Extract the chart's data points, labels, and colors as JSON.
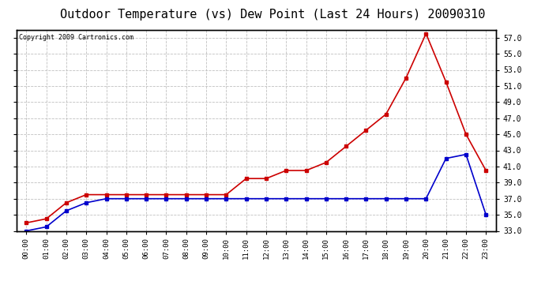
{
  "title": "Outdoor Temperature (vs) Dew Point (Last 24 Hours) 20090310",
  "copyright_text": "Copyright 2009 Cartronics.com",
  "hours": [
    0,
    1,
    2,
    3,
    4,
    5,
    6,
    7,
    8,
    9,
    10,
    11,
    12,
    13,
    14,
    15,
    16,
    17,
    18,
    19,
    20,
    21,
    22,
    23
  ],
  "temp": [
    34.0,
    34.5,
    36.5,
    37.5,
    37.5,
    37.5,
    37.5,
    37.5,
    37.5,
    37.5,
    37.5,
    39.5,
    39.5,
    40.5,
    40.5,
    41.5,
    43.5,
    45.5,
    47.5,
    52.0,
    57.5,
    51.5,
    45.0,
    40.5
  ],
  "dewpoint": [
    33.0,
    33.5,
    35.5,
    36.5,
    37.0,
    37.0,
    37.0,
    37.0,
    37.0,
    37.0,
    37.0,
    37.0,
    37.0,
    37.0,
    37.0,
    37.0,
    37.0,
    37.0,
    37.0,
    37.0,
    37.0,
    42.0,
    42.5,
    35.0
  ],
  "temp_color": "#cc0000",
  "dewpoint_color": "#0000cc",
  "ylim": [
    33.0,
    58.0
  ],
  "yticks": [
    33.0,
    35.0,
    37.0,
    39.0,
    41.0,
    43.0,
    45.0,
    47.0,
    49.0,
    51.0,
    53.0,
    55.0,
    57.0
  ],
  "grid_color": "#c0c0c0",
  "bg_color": "#ffffff",
  "title_fontsize": 11,
  "marker": "s",
  "marker_size": 3,
  "linewidth": 1.2
}
